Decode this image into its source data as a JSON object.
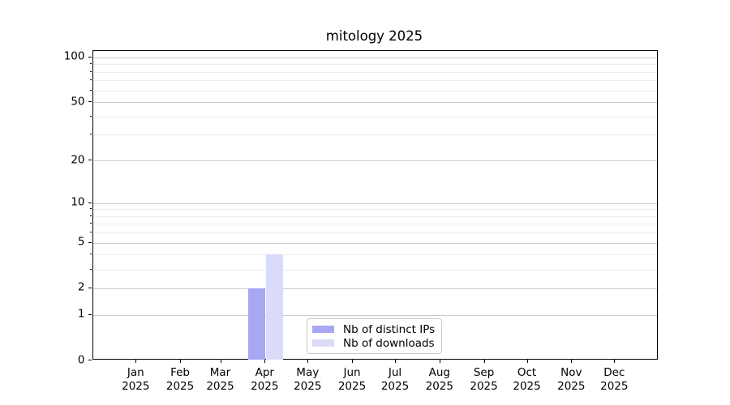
{
  "chart_data": {
    "type": "bar",
    "title": "mitology 2025",
    "x_tick_labels": [
      {
        "month": "Jan",
        "year": "2025"
      },
      {
        "month": "Feb",
        "year": "2025"
      },
      {
        "month": "Mar",
        "year": "2025"
      },
      {
        "month": "Apr",
        "year": "2025"
      },
      {
        "month": "May",
        "year": "2025"
      },
      {
        "month": "Jun",
        "year": "2025"
      },
      {
        "month": "Jul",
        "year": "2025"
      },
      {
        "month": "Aug",
        "year": "2025"
      },
      {
        "month": "Sep",
        "year": "2025"
      },
      {
        "month": "Oct",
        "year": "2025"
      },
      {
        "month": "Nov",
        "year": "2025"
      },
      {
        "month": "Dec",
        "year": "2025"
      }
    ],
    "series": [
      {
        "name": "Nb of distinct IPs",
        "color": "#a7a7f4",
        "values": [
          0,
          0,
          0,
          2,
          0,
          0,
          0,
          0,
          0,
          0,
          0,
          0
        ]
      },
      {
        "name": "Nb of downloads",
        "color": "#dadaf9",
        "values": [
          0,
          0,
          0,
          4,
          0,
          0,
          0,
          0,
          0,
          0,
          0,
          0
        ]
      }
    ],
    "y_scale": "log10(1+x)",
    "ylim": [
      0,
      110
    ],
    "y_ticks_major": [
      0,
      1,
      2,
      5,
      10,
      20,
      50,
      100
    ],
    "y_ticks_minor": [
      3,
      4,
      6,
      7,
      8,
      9,
      30,
      40,
      60,
      70,
      80,
      90
    ],
    "grid": "horizontal-only",
    "legend_position": "lower center"
  },
  "colors": {
    "background": "#ffffff",
    "spine": "#000000",
    "grid_major": "#cdcdcd",
    "grid_minor": "#ececec",
    "text": "#000000",
    "legend_border": "#cccccc"
  }
}
